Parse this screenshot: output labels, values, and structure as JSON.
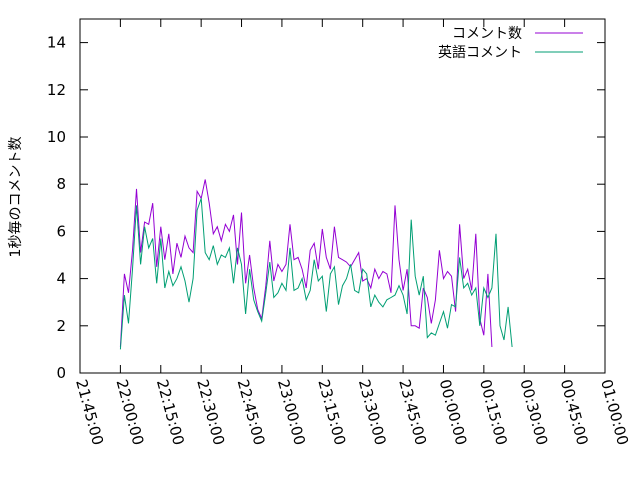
{
  "chart_data": {
    "type": "line",
    "ylabel": "1秒毎のコメント数",
    "xlabel": "",
    "ylim": [
      0,
      15
    ],
    "yticks": [
      0,
      2,
      4,
      6,
      8,
      10,
      12,
      14
    ],
    "xlim": [
      "21:45:00",
      "01:00:00"
    ],
    "xticks": [
      "21:45:00",
      "22:00:00",
      "22:15:00",
      "22:30:00",
      "22:45:00",
      "23:00:00",
      "23:15:00",
      "23:30:00",
      "23:45:00",
      "00:00:00",
      "00:15:00",
      "00:30:00",
      "00:45:00",
      "01:00:00"
    ],
    "grid": false,
    "legend_position": "top-right",
    "x_step": "00:01:30",
    "series": [
      {
        "name": "コメント数",
        "color": "#9400d3",
        "x_start": "22:00:00",
        "values": [
          1.1,
          4.2,
          3.4,
          5.2,
          7.8,
          5.1,
          6.4,
          6.3,
          7.2,
          4.5,
          6.2,
          4.8,
          5.9,
          4.2,
          5.5,
          4.9,
          5.8,
          5.3,
          5.1,
          7.7,
          7.4,
          8.2,
          7.2,
          5.9,
          6.2,
          5.6,
          6.3,
          6.0,
          6.7,
          4.6,
          6.8,
          3.8,
          5.0,
          3.6,
          2.7,
          2.3,
          3.7,
          5.6,
          3.9,
          4.6,
          4.3,
          4.6,
          6.3,
          4.8,
          4.9,
          4.4,
          3.6,
          5.2,
          5.5,
          4.4,
          6.1,
          4.9,
          4.4,
          6.2,
          4.9,
          4.8,
          4.7,
          4.5,
          4.8,
          5.1,
          3.9,
          4.0,
          3.6,
          4.4,
          4.0,
          4.3,
          4.2,
          3.4,
          7.1,
          4.8,
          3.5,
          4.4,
          2.0,
          2.0,
          1.9,
          3.6,
          3.2,
          2.1,
          3.1,
          5.2,
          4.0,
          4.3,
          4.1,
          2.6,
          6.3,
          4.0,
          4.4,
          3.5,
          5.9,
          2.3,
          1.6,
          4.2,
          1.1
        ]
      },
      {
        "name": "英語コメント",
        "color": "#009e73",
        "x_start": "22:00:00",
        "values": [
          1.0,
          3.3,
          2.1,
          4.4,
          7.1,
          4.6,
          6.2,
          5.3,
          5.7,
          3.8,
          5.7,
          3.6,
          4.3,
          3.7,
          4.0,
          4.5,
          3.9,
          3.0,
          4.0,
          6.9,
          7.4,
          5.1,
          4.8,
          5.4,
          4.6,
          5.0,
          4.9,
          5.3,
          3.8,
          5.3,
          4.6,
          2.5,
          4.4,
          3.1,
          2.6,
          2.2,
          3.4,
          4.7,
          3.2,
          3.4,
          3.8,
          3.5,
          5.3,
          3.5,
          3.6,
          4.0,
          3.1,
          3.5,
          4.8,
          3.9,
          4.1,
          2.6,
          4.2,
          4.5,
          2.9,
          3.7,
          4.0,
          4.6,
          3.5,
          3.4,
          4.4,
          4.2,
          2.8,
          3.3,
          3.0,
          2.8,
          3.1,
          3.2,
          3.3,
          3.7,
          3.3,
          2.5,
          6.5,
          4.1,
          3.3,
          4.1,
          1.5,
          1.7,
          1.6,
          2.1,
          2.6,
          1.9,
          2.9,
          2.8,
          4.9,
          3.6,
          3.8,
          3.3,
          3.6,
          2.0,
          3.6,
          3.2,
          3.6,
          5.9,
          2.0,
          1.4,
          2.8,
          1.1
        ]
      }
    ]
  }
}
